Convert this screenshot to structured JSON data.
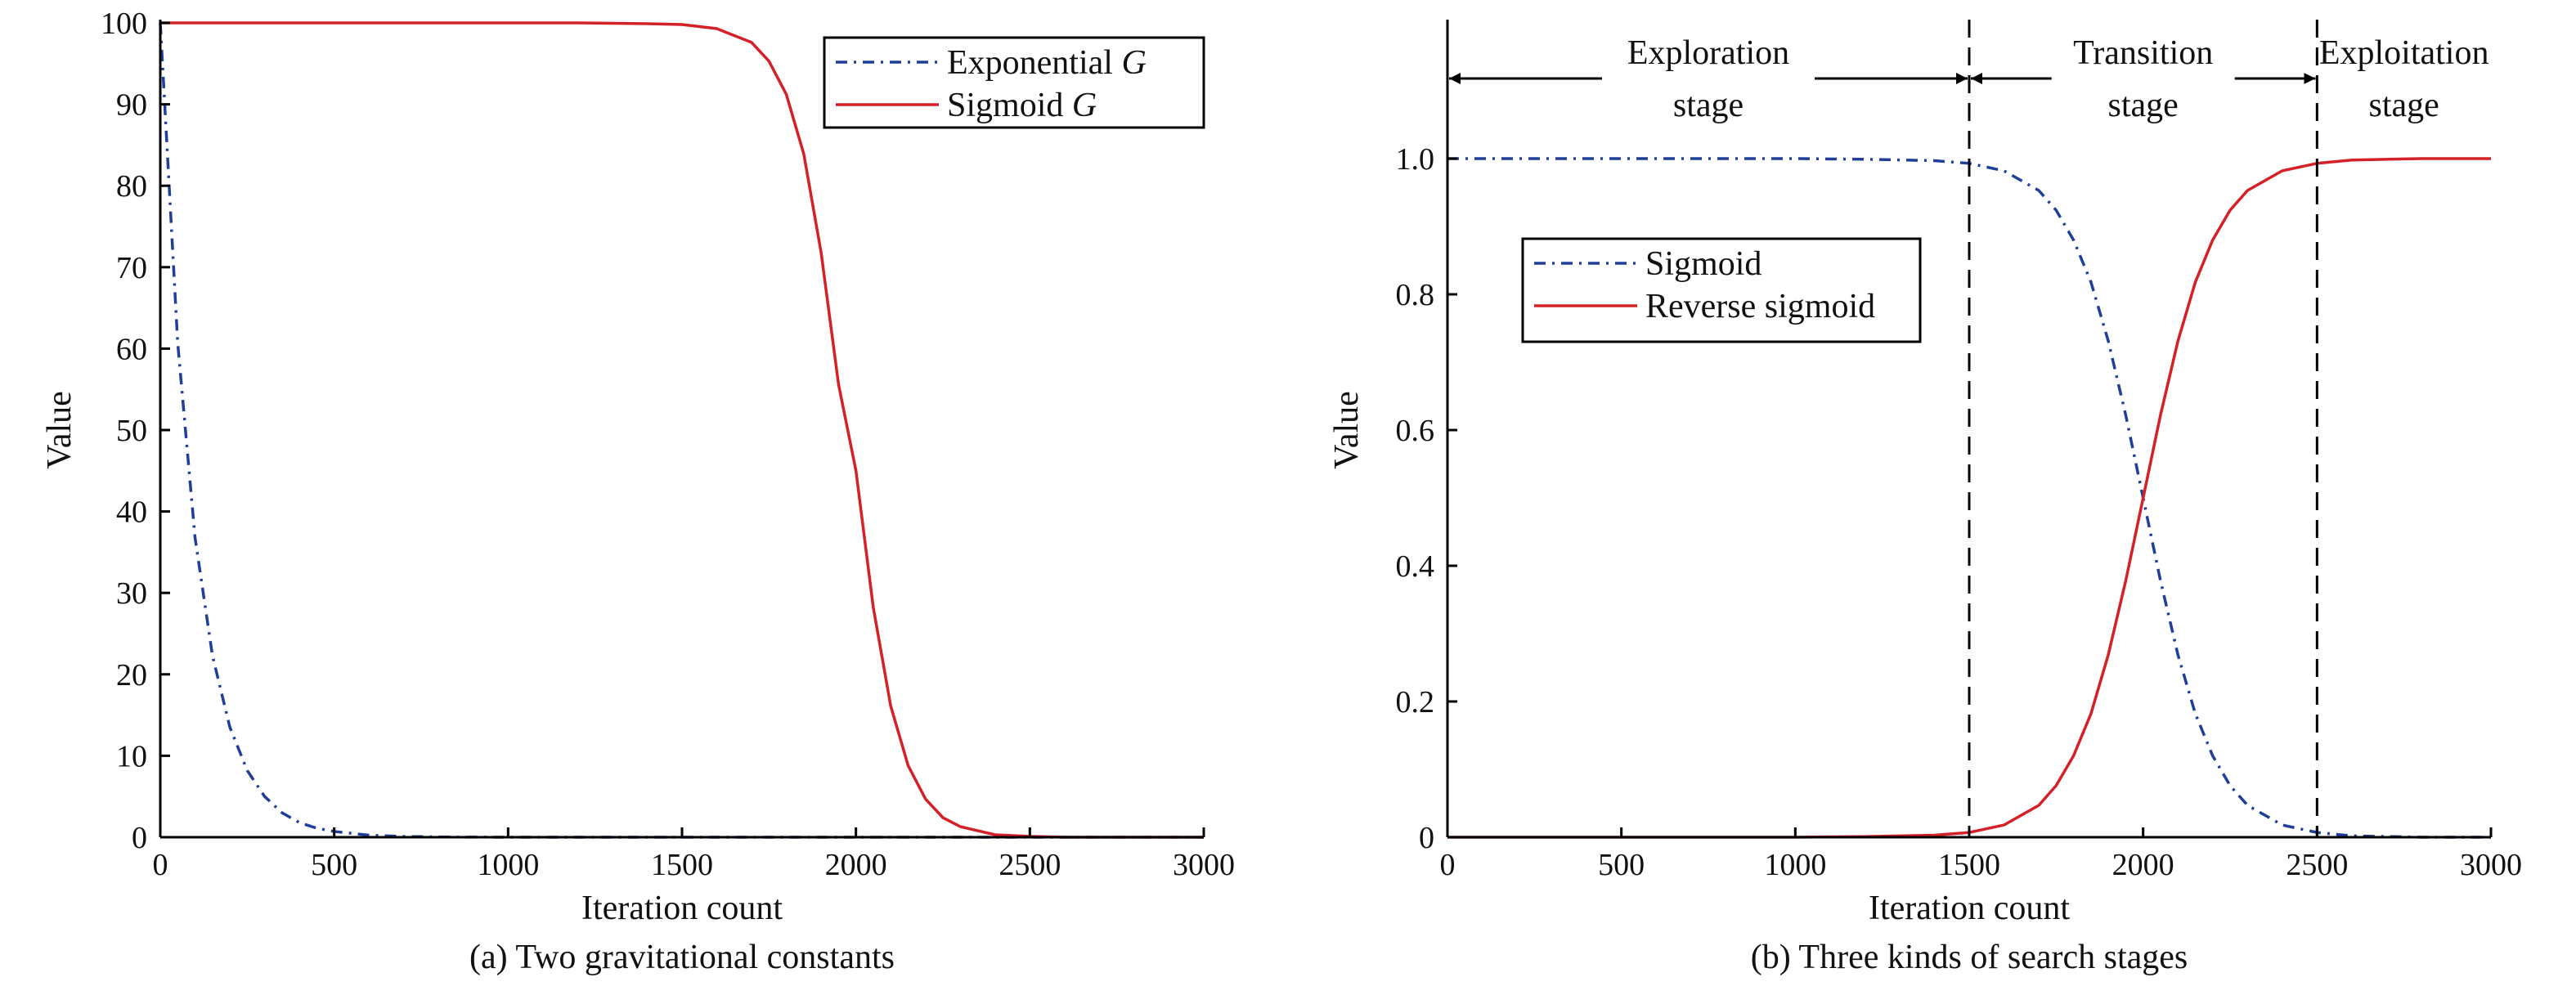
{
  "chart_data": [
    {
      "type": "line",
      "caption": "(a) Two gravitational constants",
      "xlabel": "Iteration count",
      "ylabel": "Value",
      "xlim": [
        0,
        3000
      ],
      "ylim": [
        0,
        100
      ],
      "xticks": [
        "0",
        "500",
        "1000",
        "1500",
        "2000",
        "2500",
        "3000"
      ],
      "yticks": [
        "0",
        "10",
        "20",
        "30",
        "40",
        "50",
        "60",
        "70",
        "80",
        "90",
        "100"
      ],
      "legend_placement": "top-right",
      "series": [
        {
          "name": "Exponential G",
          "label_prefix": "Exponential ",
          "label_italic": "G",
          "color": "#1f3f99",
          "style": "dash-dot",
          "x": [
            0,
            50,
            100,
            150,
            200,
            250,
            300,
            350,
            400,
            450,
            500,
            600,
            700,
            800,
            900,
            1000,
            1500,
            2000,
            2500,
            3000
          ],
          "y": [
            100,
            60.7,
            36.8,
            22.3,
            13.5,
            8.2,
            5.0,
            3.0,
            1.8,
            1.1,
            0.7,
            0.25,
            0.09,
            0.03,
            0.01,
            0,
            0,
            0,
            0,
            0
          ]
        },
        {
          "name": "Sigmoid G",
          "label_prefix": "Sigmoid ",
          "label_italic": "G",
          "color": "#d42027",
          "style": "solid",
          "x": [
            0,
            500,
            1000,
            1200,
            1400,
            1500,
            1600,
            1700,
            1750,
            1800,
            1850,
            1900,
            1950,
            2000,
            2050,
            2100,
            2150,
            2200,
            2250,
            2300,
            2400,
            2500,
            2600,
            2800,
            3000
          ],
          "y": [
            100,
            100,
            100,
            100,
            99.9,
            99.8,
            99.3,
            97.6,
            95.3,
            91.2,
            83.9,
            71.8,
            55.6,
            45.0,
            28.2,
            16.1,
            8.8,
            4.7,
            2.4,
            1.3,
            0.3,
            0.1,
            0,
            0,
            0
          ]
        }
      ]
    },
    {
      "type": "line",
      "caption": "(b) Three kinds of search stages",
      "xlabel": "Iteration count",
      "ylabel": "Value",
      "xlim": [
        0,
        3000
      ],
      "ylim": [
        0,
        1.2
      ],
      "xticks": [
        "0",
        "500",
        "1000",
        "1500",
        "2000",
        "2500",
        "3000"
      ],
      "yticks": [
        "0",
        "0.2",
        "0.4",
        "0.6",
        "0.8",
        "1.0"
      ],
      "legend_placement": "upper-left",
      "series": [
        {
          "name": "Sigmoid",
          "color": "#1f3f99",
          "style": "dash-dot",
          "x": [
            0,
            500,
            1000,
            1200,
            1400,
            1500,
            1600,
            1700,
            1750,
            1800,
            1850,
            1900,
            1950,
            2000,
            2050,
            2100,
            2150,
            2200,
            2250,
            2300,
            2400,
            2500,
            2600,
            2800,
            3000
          ],
          "y": [
            1.0,
            1.0,
            1.0,
            0.999,
            0.997,
            0.993,
            0.982,
            0.953,
            0.924,
            0.88,
            0.818,
            0.731,
            0.622,
            0.5,
            0.378,
            0.269,
            0.182,
            0.12,
            0.076,
            0.047,
            0.018,
            0.007,
            0.002,
            0,
            0
          ]
        },
        {
          "name": "Reverse sigmoid",
          "color": "#d42027",
          "style": "solid",
          "x": [
            0,
            500,
            1000,
            1200,
            1400,
            1500,
            1600,
            1700,
            1750,
            1800,
            1850,
            1900,
            1950,
            2000,
            2050,
            2100,
            2150,
            2200,
            2250,
            2300,
            2400,
            2500,
            2600,
            2800,
            3000
          ],
          "y": [
            0,
            0,
            0,
            0.001,
            0.003,
            0.007,
            0.018,
            0.047,
            0.076,
            0.12,
            0.182,
            0.269,
            0.378,
            0.5,
            0.622,
            0.731,
            0.818,
            0.88,
            0.924,
            0.953,
            0.982,
            0.993,
            0.998,
            1.0,
            1.0
          ]
        }
      ],
      "vlines": [
        1500,
        2500
      ],
      "stages": [
        {
          "name": "exploration",
          "line1": "Exploration",
          "line2": "stage",
          "x_from": 0,
          "x_to": 1500
        },
        {
          "name": "transition",
          "line1": "Transition",
          "line2": "stage",
          "x_from": 1500,
          "x_to": 2500
        },
        {
          "name": "exploitation",
          "line1": "Exploitation",
          "line2": "stage",
          "x_from": 2500,
          "x_to": 3000
        }
      ]
    }
  ]
}
